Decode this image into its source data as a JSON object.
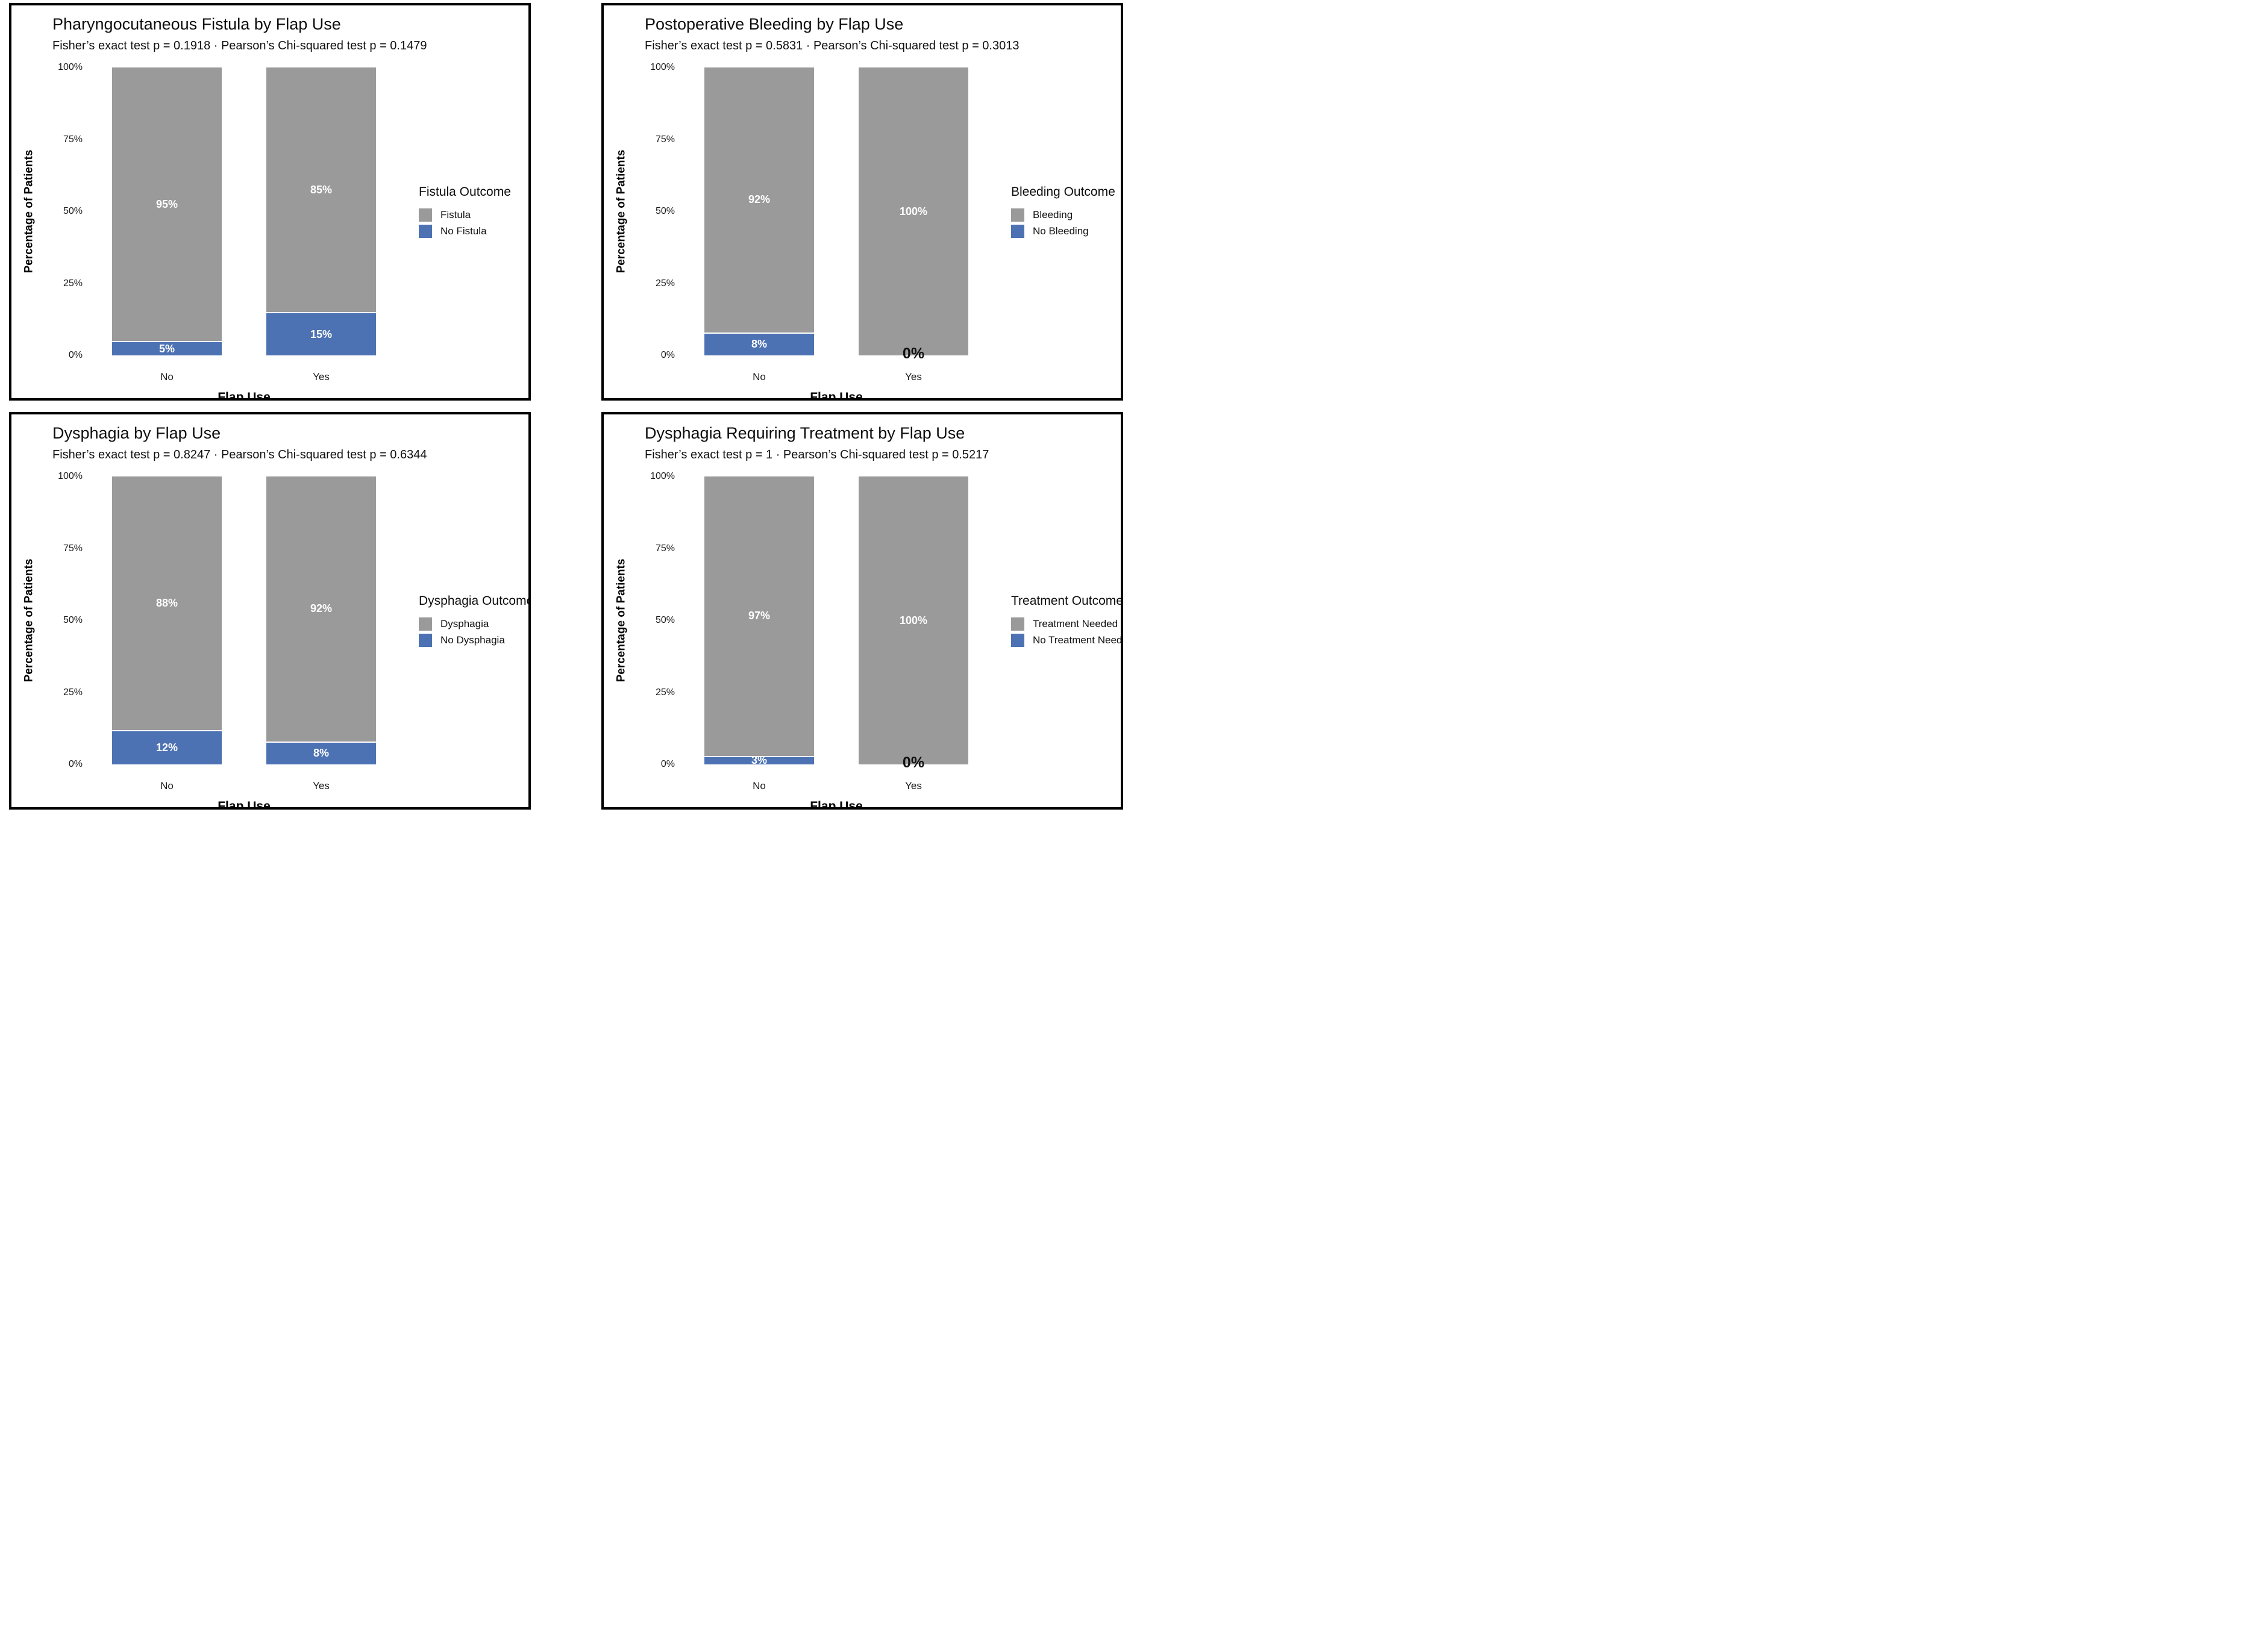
{
  "colors": {
    "bar_gray": "#9A9A9A",
    "bar_blue": "#4C72B3",
    "segment_label_text": "#FFFFFF",
    "zero_label_text": "#111111",
    "panel_border": "#000000"
  },
  "chart_data": [
    {
      "type": "bar",
      "stacked": true,
      "title": "Pharyngocutaneous Fistula by Flap Use",
      "subtitle": "Fisher’s exact test p = 0.1918 · Pearson’s Chi-squared test p = 0.1479",
      "xlabel": "Flap Use",
      "ylabel": "Percentage of Patients",
      "categories": [
        "No",
        "Yes"
      ],
      "yticks": [
        {
          "label": "0%",
          "value": 0
        },
        {
          "label": "25%",
          "value": 25
        },
        {
          "label": "50%",
          "value": 50
        },
        {
          "label": "75%",
          "value": 75
        },
        {
          "label": "100%",
          "value": 100
        }
      ],
      "ylim": [
        0,
        100
      ],
      "grid": false,
      "legend_position": "right",
      "legend_title": "Fistula Outcome",
      "series": [
        {
          "name": "Fistula",
          "color_key": "bar_gray",
          "values": [
            95,
            85
          ],
          "labels": [
            "95%",
            "85%"
          ]
        },
        {
          "name": "No Fistula",
          "color_key": "bar_blue",
          "values": [
            5,
            15
          ],
          "labels": [
            "5%",
            "15%"
          ]
        }
      ],
      "zero_labels": [
        null,
        null
      ]
    },
    {
      "type": "bar",
      "stacked": true,
      "title": "Postoperative Bleeding by Flap Use",
      "subtitle": "Fisher’s exact test p = 0.5831 · Pearson’s Chi-squared test p = 0.3013",
      "xlabel": "Flap Use",
      "ylabel": "Percentage of Patients",
      "categories": [
        "No",
        "Yes"
      ],
      "yticks": [
        {
          "label": "0%",
          "value": 0
        },
        {
          "label": "25%",
          "value": 25
        },
        {
          "label": "50%",
          "value": 50
        },
        {
          "label": "75%",
          "value": 75
        },
        {
          "label": "100%",
          "value": 100
        }
      ],
      "ylim": [
        0,
        100
      ],
      "grid": false,
      "legend_position": "right",
      "legend_title": "Bleeding Outcome",
      "series": [
        {
          "name": "Bleeding",
          "color_key": "bar_gray",
          "values": [
            92,
            100
          ],
          "labels": [
            "92%",
            "100%"
          ]
        },
        {
          "name": "No Bleeding",
          "color_key": "bar_blue",
          "values": [
            8,
            0
          ],
          "labels": [
            "8%",
            ""
          ]
        }
      ],
      "zero_labels": [
        null,
        "0%"
      ]
    },
    {
      "type": "bar",
      "stacked": true,
      "title": "Dysphagia by Flap Use",
      "subtitle": "Fisher’s exact test p = 0.8247 · Pearson’s Chi-squared test p = 0.6344",
      "xlabel": "Flap Use",
      "ylabel": "Percentage of Patients",
      "categories": [
        "No",
        "Yes"
      ],
      "yticks": [
        {
          "label": "0%",
          "value": 0
        },
        {
          "label": "25%",
          "value": 25
        },
        {
          "label": "50%",
          "value": 50
        },
        {
          "label": "75%",
          "value": 75
        },
        {
          "label": "100%",
          "value": 100
        }
      ],
      "ylim": [
        0,
        100
      ],
      "grid": false,
      "legend_position": "right",
      "legend_title": "Dysphagia Outcome",
      "series": [
        {
          "name": "Dysphagia",
          "color_key": "bar_gray",
          "values": [
            88,
            92
          ],
          "labels": [
            "88%",
            "92%"
          ]
        },
        {
          "name": "No Dysphagia",
          "color_key": "bar_blue",
          "values": [
            12,
            8
          ],
          "labels": [
            "12%",
            "8%"
          ]
        }
      ],
      "zero_labels": [
        null,
        null
      ]
    },
    {
      "type": "bar",
      "stacked": true,
      "title": "Dysphagia Requiring Treatment by Flap Use",
      "subtitle": "Fisher’s exact test p = 1 · Pearson’s Chi-squared test p = 0.5217",
      "xlabel": "Flap Use",
      "ylabel": "Percentage of Patients",
      "categories": [
        "No",
        "Yes"
      ],
      "yticks": [
        {
          "label": "0%",
          "value": 0
        },
        {
          "label": "25%",
          "value": 25
        },
        {
          "label": "50%",
          "value": 50
        },
        {
          "label": "75%",
          "value": 75
        },
        {
          "label": "100%",
          "value": 100
        }
      ],
      "ylim": [
        0,
        100
      ],
      "grid": false,
      "legend_position": "right",
      "legend_title": "Treatment Outcome",
      "series": [
        {
          "name": "Treatment Needed",
          "color_key": "bar_gray",
          "values": [
            97,
            100
          ],
          "labels": [
            "97%",
            "100%"
          ]
        },
        {
          "name": "No Treatment Needed",
          "color_key": "bar_blue",
          "values": [
            3,
            0
          ],
          "labels": [
            "3%",
            ""
          ]
        }
      ],
      "zero_labels": [
        null,
        "0%"
      ]
    }
  ]
}
